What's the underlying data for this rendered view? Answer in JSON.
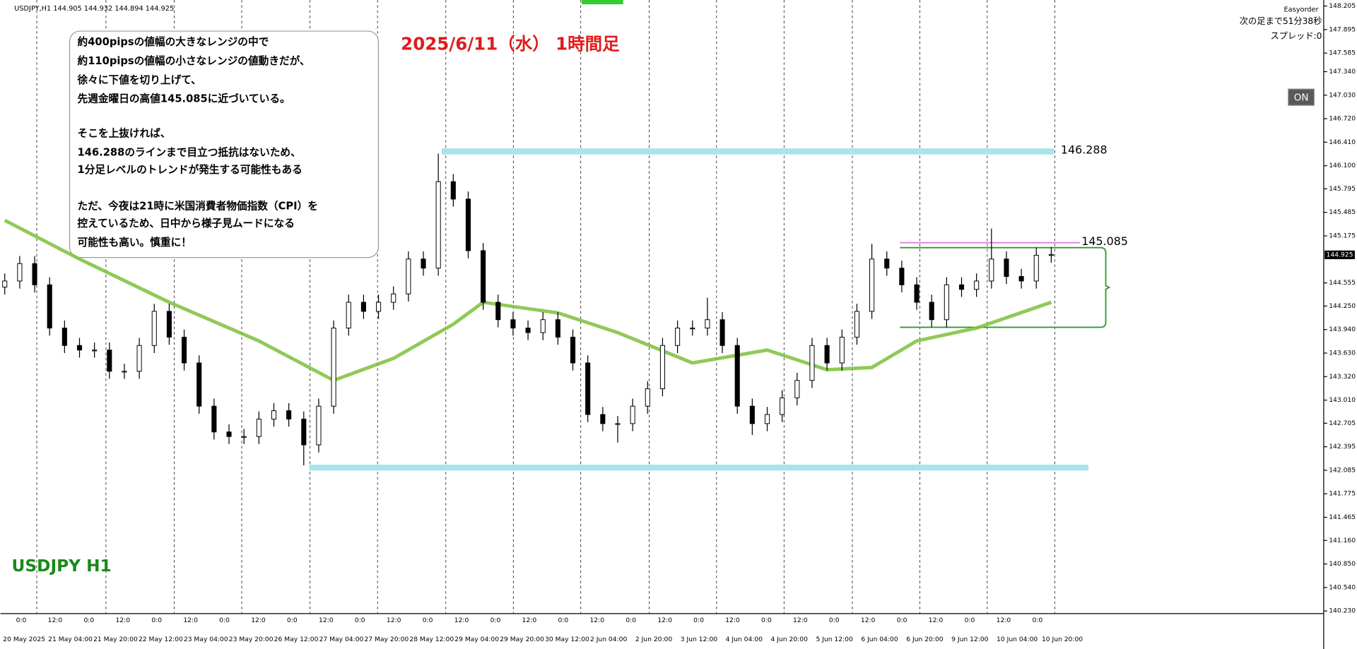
{
  "header": {
    "info": "USDJPY,H1  144.905 144.932 144.894 144.925"
  },
  "panel": {
    "broker": "Easyorder",
    "countdown": "次の足まで51分38秒",
    "spread": "スプレッド:0",
    "button": "ON"
  },
  "note": {
    "lines": [
      "約400pipsの値幅の大きなレンジの中で",
      "約110pipsの値幅の小さなレンジの値動きだが、",
      "徐々に下値を切り上げて、",
      "先週金曜日の高値145.085に近づいている。",
      "そこを上抜ければ、",
      "146.288のラインまで目立つ抵抗はないため、",
      "1分足レベルのトレンドが発生する可能性もある",
      "ただ、今夜は21時に米国消費者物価指数（CPI）を",
      "控えているため、日中から様子見ムードになる",
      "可能性も高い。慎重に！"
    ]
  },
  "symbol_label": "USDJPY H1",
  "chart_data": {
    "type": "candlestick",
    "title": "2025/6/11（水） 1時間足",
    "up_color": "#ffffff",
    "down_color": "#000000",
    "open": [
      144.5,
      144.58,
      144.81,
      144.53,
      143.96,
      143.73,
      143.67,
      143.67,
      143.39,
      143.39,
      143.73,
      144.18,
      143.84,
      143.5,
      142.93,
      142.59,
      142.53,
      142.53,
      142.76,
      142.87,
      142.76,
      142.42,
      142.93,
      143.96,
      144.3,
      144.18,
      144.3,
      144.41,
      144.87,
      144.75,
      145.89,
      145.66,
      144.98,
      144.3,
      144.07,
      143.96,
      143.9,
      144.07,
      143.84,
      143.5,
      142.82,
      142.7,
      142.7,
      142.93,
      143.16,
      143.73,
      143.96,
      143.96,
      144.07,
      143.73,
      142.93,
      142.7,
      142.82,
      143.04,
      143.27,
      143.73,
      143.5,
      143.84,
      144.18,
      144.87,
      144.75,
      144.53,
      144.3,
      144.07,
      144.53,
      144.47,
      144.58,
      144.87,
      144.64,
      144.58,
      144.92
    ],
    "high": [
      144.68,
      144.91,
      144.91,
      144.63,
      144.06,
      143.83,
      143.77,
      143.77,
      143.49,
      143.83,
      144.28,
      144.28,
      143.94,
      143.6,
      143.03,
      142.69,
      142.63,
      142.86,
      142.97,
      142.97,
      142.86,
      143.03,
      144.06,
      144.4,
      144.4,
      144.4,
      144.51,
      144.97,
      144.97,
      146.26,
      145.99,
      145.76,
      145.08,
      144.4,
      144.17,
      144.06,
      144.17,
      144.17,
      143.94,
      143.6,
      142.92,
      142.8,
      143.03,
      143.26,
      143.83,
      144.06,
      144.06,
      144.36,
      144.17,
      143.83,
      143.03,
      142.92,
      143.14,
      143.37,
      143.83,
      143.83,
      143.94,
      144.28,
      145.07,
      144.97,
      144.85,
      144.63,
      144.4,
      144.63,
      144.63,
      144.68,
      145.27,
      144.97,
      144.74,
      145.02,
      145.03
    ],
    "low": [
      144.4,
      144.48,
      144.43,
      143.86,
      143.63,
      143.57,
      143.57,
      143.29,
      143.29,
      143.29,
      143.63,
      143.74,
      143.4,
      142.83,
      142.49,
      142.43,
      142.43,
      142.43,
      142.66,
      142.66,
      142.15,
      142.32,
      142.83,
      143.86,
      144.08,
      144.08,
      144.2,
      144.31,
      144.65,
      144.65,
      145.56,
      144.88,
      144.2,
      143.97,
      143.86,
      143.8,
      143.8,
      143.74,
      143.4,
      142.72,
      142.6,
      142.45,
      142.6,
      142.83,
      143.06,
      143.63,
      143.86,
      143.86,
      143.63,
      142.83,
      142.55,
      142.6,
      142.72,
      142.94,
      143.17,
      143.4,
      143.4,
      143.74,
      144.08,
      144.65,
      144.43,
      144.2,
      143.97,
      143.97,
      144.37,
      144.37,
      144.48,
      144.54,
      144.48,
      144.48,
      144.82
    ],
    "close": [
      144.58,
      144.81,
      144.53,
      143.96,
      143.73,
      143.67,
      143.67,
      143.39,
      143.39,
      143.73,
      144.18,
      143.84,
      143.5,
      142.93,
      142.59,
      142.53,
      142.53,
      142.76,
      142.87,
      142.76,
      142.42,
      142.93,
      143.96,
      144.3,
      144.18,
      144.3,
      144.41,
      144.87,
      144.75,
      145.89,
      145.66,
      144.98,
      144.3,
      144.07,
      143.96,
      143.9,
      144.07,
      143.84,
      143.5,
      142.82,
      142.7,
      142.7,
      142.93,
      143.16,
      143.73,
      143.96,
      143.96,
      144.07,
      143.73,
      142.93,
      142.7,
      142.82,
      143.04,
      143.27,
      143.73,
      143.5,
      143.84,
      144.18,
      144.87,
      144.75,
      144.53,
      144.3,
      144.07,
      144.53,
      144.47,
      144.58,
      144.87,
      144.64,
      144.58,
      144.92,
      144.93
    ],
    "ma": {
      "color": "#7cc03a",
      "x": [
        0,
        5,
        11,
        17,
        22,
        26,
        30,
        32,
        37,
        41,
        46,
        51,
        55,
        58,
        61,
        65,
        70
      ],
      "values": [
        145.38,
        144.87,
        144.3,
        143.79,
        143.27,
        143.56,
        144.01,
        144.3,
        144.16,
        143.9,
        143.5,
        143.67,
        143.41,
        143.44,
        143.79,
        143.96,
        144.3
      ]
    },
    "ylim": [
      140.23,
      148.205
    ],
    "yticks": [
      {
        "value": 148.205,
        "label": "148.205"
      },
      {
        "value": 147.895,
        "label": "147.895"
      },
      {
        "value": 147.585,
        "label": "147.585"
      },
      {
        "value": 147.34,
        "label": "147.340"
      },
      {
        "value": 147.03,
        "label": "147.030"
      },
      {
        "value": 146.72,
        "label": "146.720"
      },
      {
        "value": 146.41,
        "label": "146.410"
      },
      {
        "value": 146.1,
        "label": "146.100"
      },
      {
        "value": 145.795,
        "label": "145.795"
      },
      {
        "value": 145.485,
        "label": "145.485"
      },
      {
        "value": 145.175,
        "label": "145.175"
      },
      {
        "value": 144.555,
        "label": "144.555"
      },
      {
        "value": 144.25,
        "label": "144.250"
      },
      {
        "value": 143.94,
        "label": "143.940"
      },
      {
        "value": 143.63,
        "label": "143.630"
      },
      {
        "value": 143.32,
        "label": "143.320"
      },
      {
        "value": 143.01,
        "label": "143.010"
      },
      {
        "value": 142.705,
        "label": "142.705"
      },
      {
        "value": 142.395,
        "label": "142.395"
      },
      {
        "value": 142.085,
        "label": "142.085"
      },
      {
        "value": 141.775,
        "label": "141.775"
      },
      {
        "value": 141.465,
        "label": "141.465"
      },
      {
        "value": 141.16,
        "label": "141.160"
      },
      {
        "value": 140.85,
        "label": "140.850"
      },
      {
        "value": 140.54,
        "label": "140.540"
      },
      {
        "value": 140.23,
        "label": "140.230"
      }
    ],
    "time_labels": [
      "0:0",
      "12:0",
      "0:0",
      "12:0",
      "0:0",
      "12:0",
      "0:0",
      "12:0",
      "0:0",
      "12:0",
      "0:0",
      "12:0",
      "0:0",
      "12:0",
      "0:0",
      "12:0",
      "0:0",
      "12:0",
      "0:0",
      "12:0",
      "0:0",
      "12:0",
      "0:0",
      "12:0",
      "0:0",
      "12:0",
      "0:0",
      "12:0",
      "0:0",
      "12:0",
      "0:0"
    ],
    "date_labels": [
      "20 May 2025",
      "21 May 04:00",
      "21 May 20:00",
      "22 May 12:00",
      "23 May 04:00",
      "23 May 20:00",
      "26 May 12:00",
      "27 May 04:00",
      "27 May 20:00",
      "28 May 12:00",
      "29 May 04:00",
      "29 May 20:00",
      "30 May 12:00",
      "2 Jun 04:00",
      "2 Jun 20:00",
      "3 Jun 12:00",
      "4 Jun 04:00",
      "4 Jun 20:00",
      "5 Jun 12:00",
      "6 Jun 04:00",
      "6 Jun 20:00",
      "9 Jun 12:00",
      "10 Jun 04:00",
      "10 Jun 20:00"
    ],
    "levels": [
      {
        "value": 146.288,
        "label": "146.288",
        "color": "#a8e4ea"
      },
      {
        "value": 142.12,
        "color": "#a8e4ea"
      },
      {
        "value": 145.085,
        "label": "145.085",
        "color": "#e07de0"
      }
    ],
    "range_box": {
      "top": 145.02,
      "bottom": 143.97,
      "color": "#2e9a2e"
    },
    "current_price": {
      "value": 144.925,
      "label": "144.925"
    }
  }
}
